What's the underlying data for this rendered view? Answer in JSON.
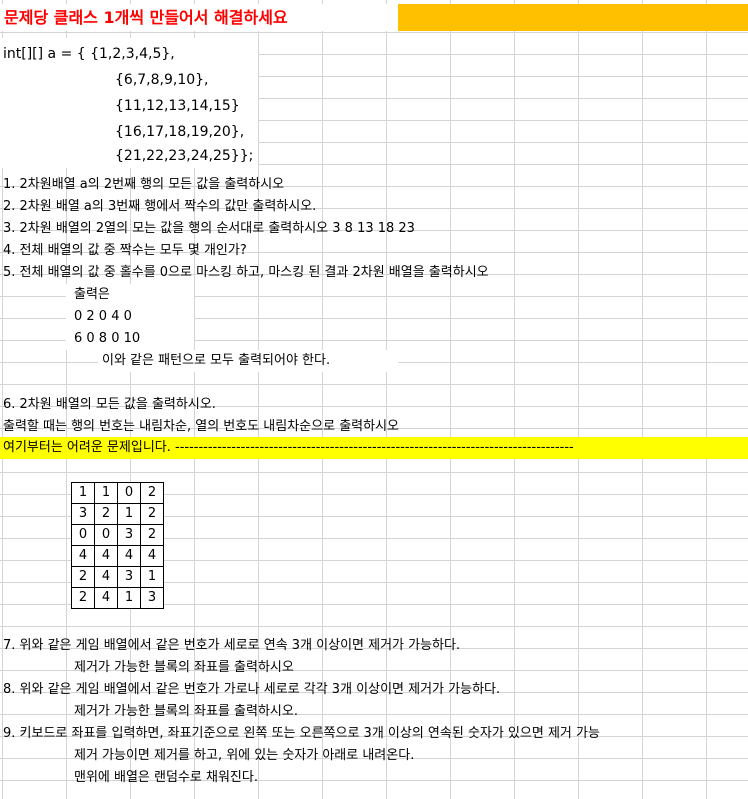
{
  "title": "문제당 클래스 1개씩 만들어서 해결하세요",
  "code": {
    "line1": "int[][] a = { {1,2,3,4,5},",
    "line2": "{6,7,8,9,10},",
    "line3": "{11,12,13,14,15}",
    "line4": "{16,17,18,19,20},",
    "line5": "{21,22,23,24,25}};"
  },
  "problems": {
    "p1": "1. 2차원배열 a의 2번째 행의 모든 값을 출력하시오",
    "p2": "2. 2차원 배열 a의 3번째 행에서 짝수의 값만 출력하시오.",
    "p3": "3. 2차원 배열의 2열의 모는 값을 행의 순서대로 출력하시오   3 8 13  18  23",
    "p4": "4. 전체 배열의 값 중 짝수는 모두 몇 개인가?",
    "p5": "5. 전체 배열의 값 중 홀수를 0으로 마스킹 하고, 마스킹 된 결과 2차원 배열을 출력하시오",
    "p5_output_label": "출력은",
    "p5_row1": "0 2 0 4 0",
    "p5_row2": "6 0 8 0 10",
    "p5_note": "이와 같은 패턴으로 모두 출력되어야 한다.",
    "p6": "6. 2차원 배열의 모든 값을 출력하시오.",
    "p6_sub": "출력할 때는 행의 번호는 내림차순, 열의 번호도 내림차순으로 출력하시오",
    "hard_banner": "여기부터는 어려운 문제입니다. -------------------------------------------------------------------------------------",
    "p7": "7. 위와 같은 게임 배열에서 같은 번호가 세로로 연속 3개 이상이면 제거가 가능하다.",
    "p7_sub": "제거가 가능한 블록의 좌표를 출력하시오",
    "p8": "8. 위와 같은 게임 배열에서 같은 번호가 가로나 세로로 각각 3개 이상이면 제거가 가능하다.",
    "p8_sub": "제거가 가능한 블록의 좌표를 출력하시오.",
    "p9": "9. 키보드로 좌표를 입력하면, 좌표기준으로 왼쪽 또는 오른쪽으로 3개 이상의 연속된 숫자가 있으면 제거 가능",
    "p9_sub1": "제거 가능이면 제거를 하고, 위에 있는 숫자가 아래로 내려온다.",
    "p9_sub2": "맨위에 배열은 랜덤수로 채워진다."
  },
  "game_board": [
    [
      "1",
      "1",
      "0",
      "2"
    ],
    [
      "3",
      "2",
      "1",
      "2"
    ],
    [
      "0",
      "0",
      "3",
      "2"
    ],
    [
      "4",
      "4",
      "4",
      "4"
    ],
    [
      "2",
      "4",
      "3",
      "1"
    ],
    [
      "2",
      "4",
      "1",
      "3"
    ]
  ],
  "colors": {
    "title_text": "#ff0000",
    "title_band": "#ffc000",
    "banner": "#ffff00",
    "grid": "#d4d4d4"
  }
}
